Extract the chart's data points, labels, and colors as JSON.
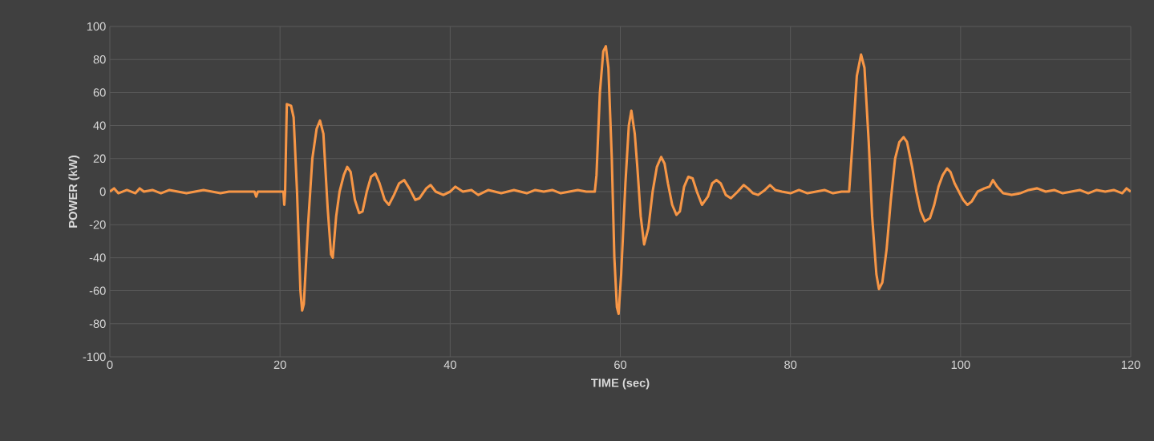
{
  "chart_data": {
    "type": "line",
    "xlabel": "TIME (sec)",
    "ylabel": "POWER (kW)",
    "color": "#f79646",
    "grid": true,
    "xlim": [
      0,
      120
    ],
    "ylim": [
      -100,
      100
    ],
    "xticks": [
      0,
      20,
      40,
      60,
      80,
      100,
      120
    ],
    "yticks": [
      -100,
      -80,
      -60,
      -40,
      -20,
      0,
      20,
      40,
      60,
      80,
      100
    ],
    "x": [
      0,
      0.5,
      1,
      2,
      3,
      3.5,
      4,
      5,
      6,
      7,
      8,
      9,
      10,
      11,
      12,
      13,
      14,
      15,
      16,
      17,
      17.2,
      17.4,
      18,
      19,
      20.4,
      20.5,
      20.6,
      20.8,
      21.3,
      21.6,
      22,
      22.4,
      22.6,
      22.8,
      23.3,
      23.8,
      24.3,
      24.7,
      25.1,
      25.6,
      26,
      26.2,
      26.6,
      27,
      27.5,
      27.9,
      28.3,
      28.8,
      29.3,
      29.7,
      30.2,
      30.7,
      31.2,
      31.7,
      32.3,
      32.8,
      33.4,
      34,
      34.6,
      35.2,
      35.9,
      36.4,
      37.2,
      37.7,
      38.3,
      39.2,
      40,
      40.6,
      41.5,
      42.5,
      43.3,
      44.5,
      46,
      47.5,
      49,
      50,
      51,
      52,
      53,
      54,
      55,
      56,
      57,
      57.2,
      57.6,
      58,
      58.3,
      58.6,
      59,
      59.3,
      59.6,
      59.8,
      60.1,
      60.6,
      61,
      61.3,
      61.7,
      62,
      62.4,
      62.8,
      63.3,
      63.8,
      64.3,
      64.8,
      65.2,
      65.6,
      66.1,
      66.6,
      67,
      67.5,
      68,
      68.5,
      69,
      69.6,
      70.3,
      70.8,
      71.3,
      71.8,
      72.4,
      73,
      73.8,
      74.5,
      75,
      75.6,
      76.2,
      77,
      77.6,
      78.2,
      79,
      80,
      81,
      82,
      83,
      84,
      85,
      86,
      86.9,
      87.3,
      87.8,
      88.3,
      88.7,
      89.2,
      89.6,
      90.1,
      90.4,
      90.8,
      91.3,
      91.8,
      92.3,
      92.8,
      93.3,
      93.7,
      94.3,
      94.8,
      95.3,
      95.8,
      96.4,
      96.9,
      97.4,
      97.9,
      98.4,
      98.8,
      99.3,
      99.8,
      100.3,
      100.8,
      101.3,
      102,
      102.8,
      103.4,
      103.8,
      104.3,
      105,
      106,
      107,
      108,
      109,
      110,
      111,
      112,
      113,
      114,
      115,
      116,
      117,
      118,
      119,
      119.5,
      120
    ],
    "values": [
      0,
      2,
      -1,
      1,
      -1,
      2,
      0,
      1,
      -1,
      1,
      0,
      -1,
      0,
      1,
      0,
      -1,
      0,
      0,
      0,
      0,
      -3,
      0,
      0,
      0,
      0,
      -8,
      0,
      53,
      52,
      45,
      0,
      -60,
      -72,
      -68,
      -20,
      20,
      38,
      43,
      35,
      -10,
      -38,
      -40,
      -15,
      0,
      10,
      15,
      12,
      -5,
      -13,
      -12,
      0,
      9,
      11,
      5,
      -5,
      -8,
      -2,
      5,
      7,
      2,
      -5,
      -4,
      2,
      4,
      0,
      -2,
      0,
      3,
      0,
      1,
      -2,
      1,
      -1,
      1,
      -1,
      1,
      0,
      1,
      -1,
      0,
      1,
      0,
      0,
      10,
      60,
      85,
      88,
      75,
      20,
      -40,
      -70,
      -74,
      -50,
      5,
      40,
      49,
      35,
      15,
      -15,
      -32,
      -22,
      0,
      15,
      21,
      17,
      5,
      -8,
      -14,
      -12,
      3,
      9,
      8,
      0,
      -8,
      -3,
      5,
      7,
      5,
      -2,
      -4,
      0,
      4,
      2,
      -1,
      -2,
      1,
      4,
      1,
      0,
      -1,
      1,
      -1,
      0,
      1,
      -1,
      0,
      0,
      30,
      70,
      83,
      75,
      30,
      -15,
      -50,
      -59,
      -55,
      -35,
      -5,
      20,
      30,
      33,
      30,
      15,
      0,
      -12,
      -18,
      -16,
      -8,
      3,
      10,
      14,
      12,
      5,
      0,
      -5,
      -8,
      -6,
      0,
      2,
      3,
      7,
      3,
      -1,
      -2,
      -1,
      1,
      2,
      0,
      1,
      -1,
      0,
      1,
      -1,
      1,
      0,
      1,
      -1,
      2,
      0
    ]
  }
}
